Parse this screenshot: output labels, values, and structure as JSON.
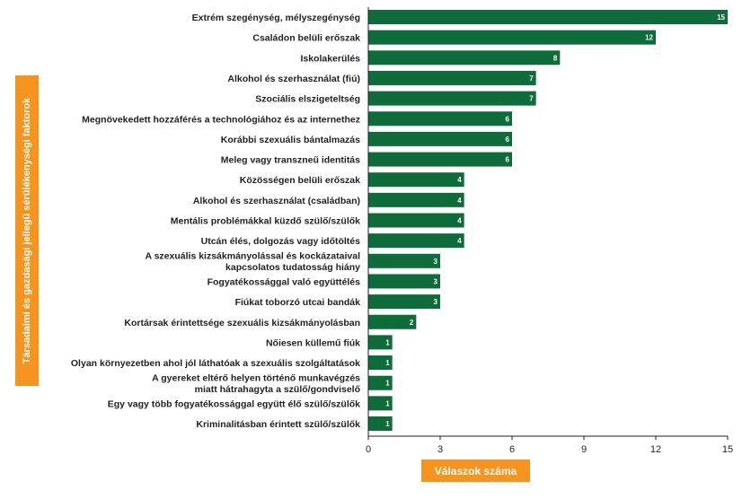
{
  "chart_data": {
    "type": "bar",
    "orientation": "horizontal",
    "ylabel": "Társadalmi és gazdasági jellegű sérülékenységi faktorok",
    "xlabel": "Válaszok száma",
    "xlim": [
      0,
      15
    ],
    "xticks": [
      0,
      3,
      6,
      9,
      12,
      15
    ],
    "bar_color": "#0e6b3a",
    "label_box_color": "#f7941d",
    "grid": false,
    "categories": [
      [
        "Extrém szegénység, mélyszegénység"
      ],
      [
        "Családon belüli erőszak"
      ],
      [
        "Iskolakerülés"
      ],
      [
        "Alkohol és szerhasználat (fiú)"
      ],
      [
        "Szociális elszigeteltség"
      ],
      [
        "Megnövekedett hozzáférés a technológiához és az internethez"
      ],
      [
        "Korábbi szexuális bántalmazás"
      ],
      [
        "Meleg vagy transzneű identitás"
      ],
      [
        "Közösségen belüli erőszak"
      ],
      [
        "Alkohol és szerhasználat (családban)"
      ],
      [
        "Mentális problémákkal küzdő szülő/szülők"
      ],
      [
        "Utcán élés, dolgozás vagy időtöltés"
      ],
      [
        "A szexuális kizsákmányolással és kockázataival",
        "kapcsolatos tudatosság hiány"
      ],
      [
        "Fogyatékossággal való együttélés"
      ],
      [
        "Fiúkat toborzó utcai bandák"
      ],
      [
        "Kortársak érintettsége szexuális kizsákmányolásban"
      ],
      [
        "Nőiesen küllemű fiúk"
      ],
      [
        "Olyan környezetben ahol jól láthatóak a szexuális szolgáltatások"
      ],
      [
        "A gyereket eltérő helyen történő munkavégzés",
        "miatt hátrahagyta a szülő/gondviselő"
      ],
      [
        "Egy vagy több fogyatékossággal együtt élő szülő/szülők"
      ],
      [
        "Kriminalitásban érintett szülő/szülők"
      ]
    ],
    "values": [
      15,
      12,
      8,
      7,
      7,
      6,
      6,
      6,
      4,
      4,
      4,
      4,
      3,
      3,
      3,
      2,
      1,
      1,
      1,
      1,
      1
    ]
  }
}
